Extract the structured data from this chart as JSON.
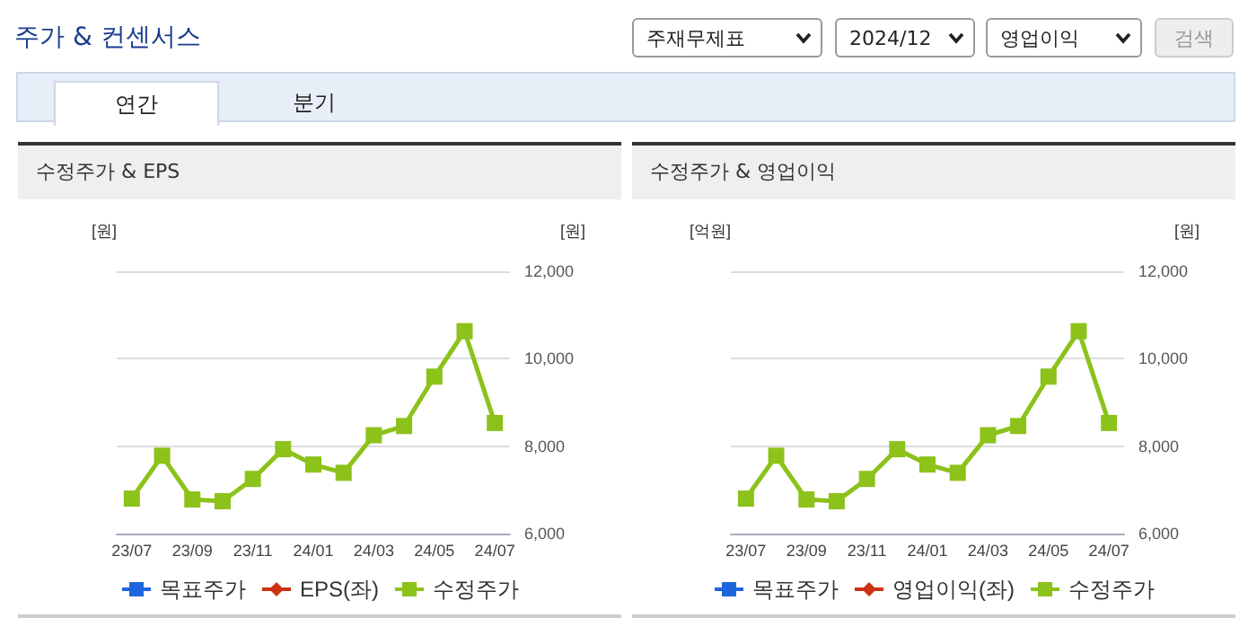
{
  "chart_data": [
    {
      "type": "other",
      "title": "주가 & 컨센서스",
      "annotations": [
        "주재무제표",
        "2024/12",
        "영업이익",
        "검색",
        "연간",
        "분기"
      ]
    },
    {
      "type": "line",
      "title": "수정주가 & EPS",
      "ylabel": "[원]",
      "y2label": "[원]",
      "categories": [
        "23/07",
        null,
        "23/09",
        null,
        "23/11",
        null,
        "24/01",
        null,
        "24/03",
        null,
        "24/05",
        null,
        "24/07"
      ],
      "series": [
        {
          "name": "목표주가",
          "color": "#1f66dd",
          "marker": "square",
          "values": [
            null,
            null,
            null,
            null,
            null,
            null,
            null,
            null,
            null,
            null,
            null,
            null,
            null
          ]
        },
        {
          "name": "EPS(좌)",
          "color": "#cc3311",
          "marker": "diamond",
          "values": [
            null,
            null,
            null,
            null,
            null,
            null,
            null,
            null,
            null,
            null,
            null,
            null,
            null
          ]
        },
        {
          "name": "수정주가",
          "color": "#8cc21a",
          "marker": "square",
          "axis": "y2",
          "values": [
            6800,
            7780,
            6780,
            6740,
            7250,
            7930,
            7580,
            7390,
            8250,
            8460,
            9590,
            10630,
            8530
          ]
        }
      ],
      "y2lim": [
        6000,
        12000
      ],
      "y2ticks": [
        {
          "value": 6000,
          "label": "6,000"
        },
        {
          "value": 8000,
          "label": "8,000"
        },
        {
          "value": 10000,
          "label": "10,000"
        },
        {
          "value": 12000,
          "label": "12,000"
        }
      ],
      "grid": "y",
      "legend": "bottom"
    },
    {
      "type": "line",
      "title": "수정주가 & 영업이익",
      "ylabel": "[억원]",
      "y2label": "[원]",
      "categories": [
        "23/07",
        null,
        "23/09",
        null,
        "23/11",
        null,
        "24/01",
        null,
        "24/03",
        null,
        "24/05",
        null,
        "24/07"
      ],
      "series": [
        {
          "name": "목표주가",
          "color": "#1f66dd",
          "marker": "square",
          "values": [
            null,
            null,
            null,
            null,
            null,
            null,
            null,
            null,
            null,
            null,
            null,
            null,
            null
          ]
        },
        {
          "name": "영업이익(좌)",
          "color": "#cc3311",
          "marker": "diamond",
          "values": [
            null,
            null,
            null,
            null,
            null,
            null,
            null,
            null,
            null,
            null,
            null,
            null,
            null
          ]
        },
        {
          "name": "수정주가",
          "color": "#8cc21a",
          "marker": "square",
          "axis": "y2",
          "values": [
            6800,
            7780,
            6780,
            6740,
            7250,
            7930,
            7580,
            7390,
            8250,
            8460,
            9590,
            10630,
            8530
          ]
        }
      ],
      "y2lim": [
        6000,
        12000
      ],
      "y2ticks": [
        {
          "value": 6000,
          "label": "6,000"
        },
        {
          "value": 8000,
          "label": "8,000"
        },
        {
          "value": 10000,
          "label": "10,000"
        },
        {
          "value": 12000,
          "label": "12,000"
        }
      ],
      "grid": "y",
      "legend": "bottom"
    }
  ]
}
